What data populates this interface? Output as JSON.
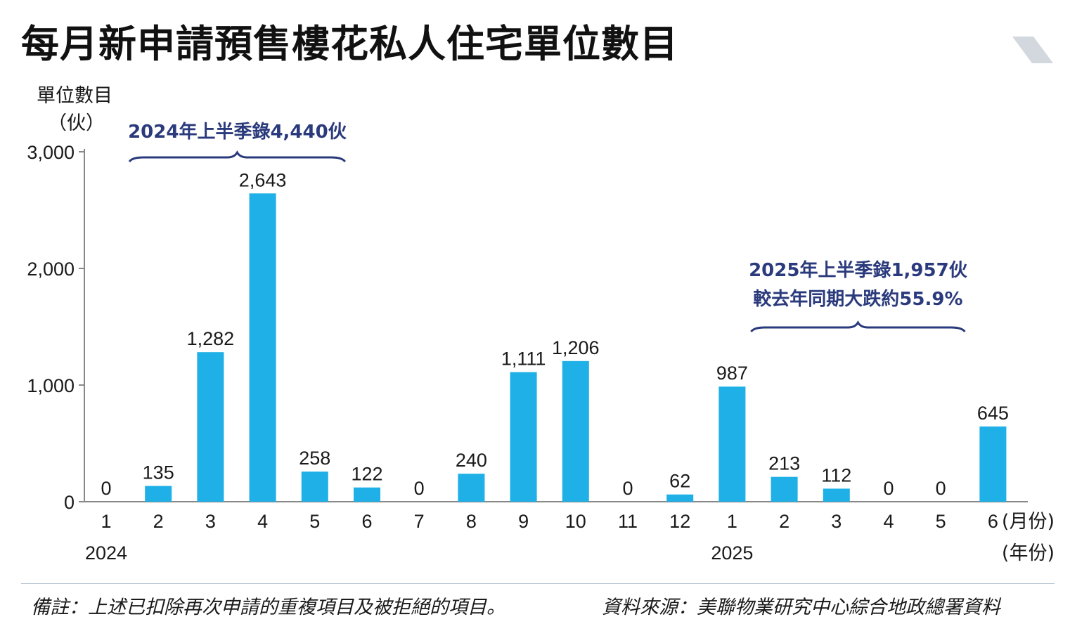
{
  "title": "每月新申請預售樓花私人住宅單位數目",
  "colors": {
    "bar": "#1eb0e6",
    "annotation": "#2a3a7c",
    "title_bar": "#d3d8de",
    "axis": "#888888"
  },
  "chart_data": {
    "type": "bar",
    "ylabel_line1": "單位數目",
    "ylabel_line2": "（伙）",
    "x_unit_month": "(月份)",
    "x_unit_year": "(年份)",
    "ylim": [
      0,
      3000
    ],
    "yticks": [
      0,
      1000,
      2000,
      3000
    ],
    "ytick_labels": [
      "0",
      "1,000",
      "2,000",
      "3,000"
    ],
    "categories": [
      "1",
      "2",
      "3",
      "4",
      "5",
      "6",
      "7",
      "8",
      "9",
      "10",
      "11",
      "12",
      "1",
      "2",
      "3",
      "4",
      "5",
      "6"
    ],
    "years": [
      {
        "label": "2024",
        "at_index": 0
      },
      {
        "label": "2025",
        "at_index": 12
      }
    ],
    "values": [
      0,
      135,
      1282,
      2643,
      258,
      122,
      0,
      240,
      1111,
      1206,
      0,
      62,
      987,
      213,
      112,
      0,
      0,
      645
    ],
    "value_labels": [
      "0",
      "135",
      "1,282",
      "2,643",
      "258",
      "122",
      "0",
      "240",
      "1,111",
      "1,206",
      "0",
      "62",
      "987",
      "213",
      "112",
      "0",
      "0",
      "645"
    ],
    "annotations": [
      {
        "lines": [
          "2024年上半季錄4,440伙"
        ],
        "from_index": 0,
        "to_index": 4
      },
      {
        "lines": [
          "2025年上半季錄1,957伙",
          "較去年同期大跌約55.9%"
        ],
        "from_index": 12,
        "to_index": 17
      }
    ]
  },
  "footer": {
    "note": "備註：上述已扣除再次申請的重複項目及被拒絕的項目。",
    "source": "資料來源：美聯物業研究中心綜合地政總署資料"
  }
}
